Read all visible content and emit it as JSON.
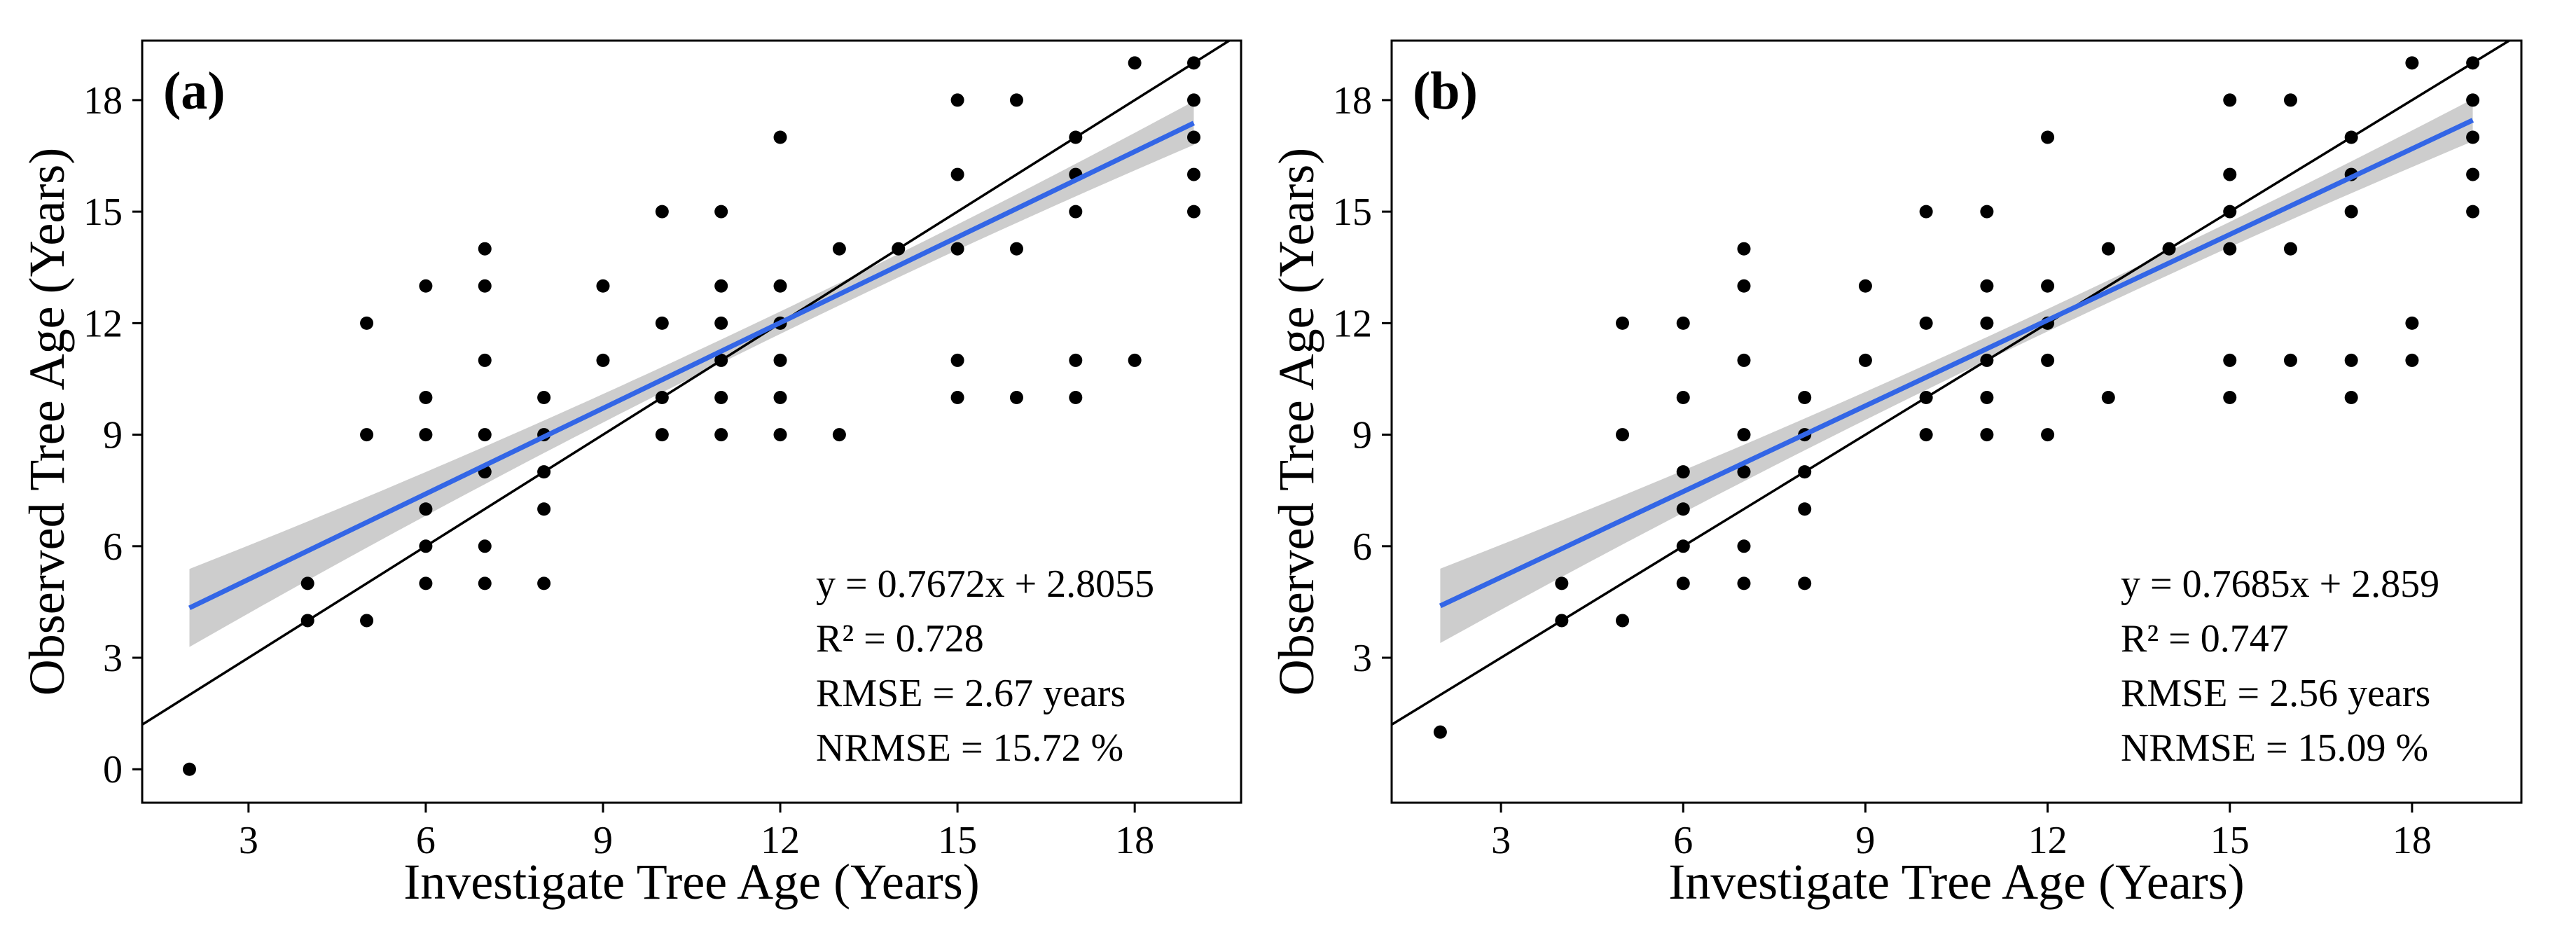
{
  "chart_data": [
    {
      "type": "scatter",
      "panel_label": "(a)",
      "xlabel": "Investigate Tree Age (Years)",
      "ylabel": "Observed Tree Age (Years)",
      "xlim": [
        1.2,
        19.8
      ],
      "ylim": [
        -0.9,
        19.6
      ],
      "xticks": [
        3,
        6,
        9,
        12,
        15,
        18
      ],
      "yticks": [
        0,
        3,
        6,
        9,
        12,
        15,
        18
      ],
      "reference_line": "y = x",
      "fit": {
        "slope": 0.7672,
        "intercept": 2.8055,
        "x_range": [
          2,
          19
        ],
        "band_halfwidth_ends": 1.05,
        "band_halfwidth_center": 0.3,
        "band_center_x": 12.5
      },
      "annotations": [
        "y = 0.7672x + 2.8055",
        "R² = 0.728",
        "RMSE = 2.67 years",
        "NRMSE = 15.72 %"
      ],
      "points": [
        [
          2,
          0
        ],
        [
          4,
          4
        ],
        [
          4,
          5
        ],
        [
          5,
          4
        ],
        [
          5,
          9
        ],
        [
          5,
          12
        ],
        [
          6,
          5
        ],
        [
          6,
          6
        ],
        [
          6,
          7
        ],
        [
          6,
          9
        ],
        [
          6,
          10
        ],
        [
          6,
          13
        ],
        [
          7,
          5
        ],
        [
          7,
          6
        ],
        [
          7,
          8
        ],
        [
          7,
          9
        ],
        [
          7,
          11
        ],
        [
          7,
          13
        ],
        [
          7,
          14
        ],
        [
          8,
          5
        ],
        [
          8,
          7
        ],
        [
          8,
          8
        ],
        [
          8,
          9
        ],
        [
          8,
          10
        ],
        [
          9,
          11
        ],
        [
          9,
          13
        ],
        [
          10,
          9
        ],
        [
          10,
          10
        ],
        [
          10,
          12
        ],
        [
          10,
          15
        ],
        [
          11,
          9
        ],
        [
          11,
          10
        ],
        [
          11,
          11
        ],
        [
          11,
          12
        ],
        [
          11,
          13
        ],
        [
          11,
          15
        ],
        [
          12,
          9
        ],
        [
          12,
          10
        ],
        [
          12,
          11
        ],
        [
          12,
          12
        ],
        [
          12,
          13
        ],
        [
          12,
          17
        ],
        [
          13,
          9
        ],
        [
          13,
          14
        ],
        [
          14,
          14
        ],
        [
          15,
          10
        ],
        [
          15,
          11
        ],
        [
          15,
          14
        ],
        [
          15,
          16
        ],
        [
          15,
          18
        ],
        [
          16,
          10
        ],
        [
          16,
          14
        ],
        [
          16,
          18
        ],
        [
          17,
          10
        ],
        [
          17,
          11
        ],
        [
          17,
          15
        ],
        [
          17,
          16
        ],
        [
          17,
          17
        ],
        [
          18,
          11
        ],
        [
          18,
          19
        ],
        [
          19,
          15
        ],
        [
          19,
          16
        ],
        [
          19,
          17
        ],
        [
          19,
          18
        ],
        [
          19,
          19
        ]
      ]
    },
    {
      "type": "scatter",
      "panel_label": "(b)",
      "xlabel": "Investigate Tree Age (Years)",
      "ylabel": "Observed Tree Age (Years)",
      "xlim": [
        1.2,
        19.8
      ],
      "ylim": [
        -0.9,
        19.6
      ],
      "xticks": [
        3,
        6,
        9,
        12,
        15,
        18
      ],
      "yticks": [
        3,
        6,
        9,
        12,
        15,
        18
      ],
      "reference_line": "y = x",
      "fit": {
        "slope": 0.7685,
        "intercept": 2.859,
        "x_range": [
          2,
          19
        ],
        "band_halfwidth_ends": 1.0,
        "band_halfwidth_center": 0.3,
        "band_center_x": 12.5
      },
      "annotations": [
        "y = 0.7685x + 2.859",
        "R² = 0.747",
        "RMSE = 2.56 years",
        "NRMSE = 15.09 %"
      ],
      "points": [
        [
          2,
          1
        ],
        [
          4,
          4
        ],
        [
          4,
          5
        ],
        [
          5,
          4
        ],
        [
          5,
          9
        ],
        [
          5,
          12
        ],
        [
          6,
          5
        ],
        [
          6,
          6
        ],
        [
          6,
          7
        ],
        [
          6,
          8
        ],
        [
          6,
          10
        ],
        [
          6,
          12
        ],
        [
          7,
          5
        ],
        [
          7,
          6
        ],
        [
          7,
          8
        ],
        [
          7,
          9
        ],
        [
          7,
          11
        ],
        [
          7,
          13
        ],
        [
          7,
          14
        ],
        [
          8,
          5
        ],
        [
          8,
          7
        ],
        [
          8,
          8
        ],
        [
          8,
          9
        ],
        [
          8,
          10
        ],
        [
          9,
          11
        ],
        [
          9,
          13
        ],
        [
          10,
          9
        ],
        [
          10,
          10
        ],
        [
          10,
          12
        ],
        [
          10,
          15
        ],
        [
          11,
          9
        ],
        [
          11,
          10
        ],
        [
          11,
          11
        ],
        [
          11,
          12
        ],
        [
          11,
          13
        ],
        [
          11,
          15
        ],
        [
          12,
          9
        ],
        [
          12,
          11
        ],
        [
          12,
          12
        ],
        [
          12,
          13
        ],
        [
          12,
          17
        ],
        [
          13,
          10
        ],
        [
          13,
          14
        ],
        [
          14,
          14
        ],
        [
          15,
          10
        ],
        [
          15,
          11
        ],
        [
          15,
          14
        ],
        [
          15,
          15
        ],
        [
          15,
          16
        ],
        [
          15,
          18
        ],
        [
          16,
          11
        ],
        [
          16,
          14
        ],
        [
          16,
          18
        ],
        [
          17,
          10
        ],
        [
          17,
          11
        ],
        [
          17,
          15
        ],
        [
          17,
          16
        ],
        [
          17,
          17
        ],
        [
          18,
          11
        ],
        [
          18,
          12
        ],
        [
          18,
          19
        ],
        [
          19,
          15
        ],
        [
          19,
          16
        ],
        [
          19,
          17
        ],
        [
          19,
          18
        ],
        [
          19,
          19
        ]
      ]
    }
  ],
  "colors": {
    "fit_line": "#3366e6",
    "band": "#c8c8c8",
    "points": "#000000",
    "reference": "#000000"
  }
}
